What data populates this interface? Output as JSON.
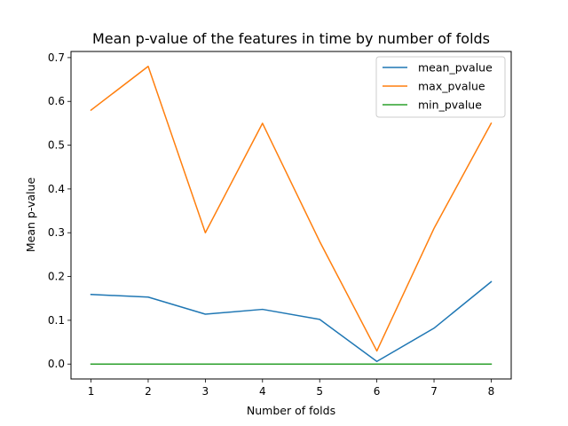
{
  "chart_data": {
    "type": "line",
    "title": "Mean p-value of the features in time by number of folds",
    "xlabel": "Number of folds",
    "ylabel": "Mean p-value",
    "x": [
      1,
      2,
      3,
      4,
      5,
      6,
      7,
      8
    ],
    "xlim": [
      0.65,
      8.35
    ],
    "ylim": [
      -0.034,
      0.714
    ],
    "xticks": [
      1,
      2,
      3,
      4,
      5,
      6,
      7,
      8
    ],
    "yticks": [
      0.0,
      0.1,
      0.2,
      0.3,
      0.4,
      0.5,
      0.6,
      0.7
    ],
    "ytick_labels": [
      "0.0",
      "0.1",
      "0.2",
      "0.3",
      "0.4",
      "0.5",
      "0.6",
      "0.7"
    ],
    "grid": false,
    "legend_position": "top-right",
    "series": [
      {
        "name": "mean_pvalue",
        "color": "#1f77b4",
        "values": [
          0.159,
          0.153,
          0.114,
          0.125,
          0.102,
          0.006,
          0.082,
          0.188
        ]
      },
      {
        "name": "max_pvalue",
        "color": "#ff7f0e",
        "values": [
          0.58,
          0.68,
          0.3,
          0.55,
          0.28,
          0.03,
          0.31,
          0.55
        ]
      },
      {
        "name": "min_pvalue",
        "color": "#2ca02c",
        "values": [
          0.0,
          0.0,
          0.0,
          0.0,
          0.0,
          0.0,
          0.0,
          0.0
        ]
      }
    ]
  }
}
